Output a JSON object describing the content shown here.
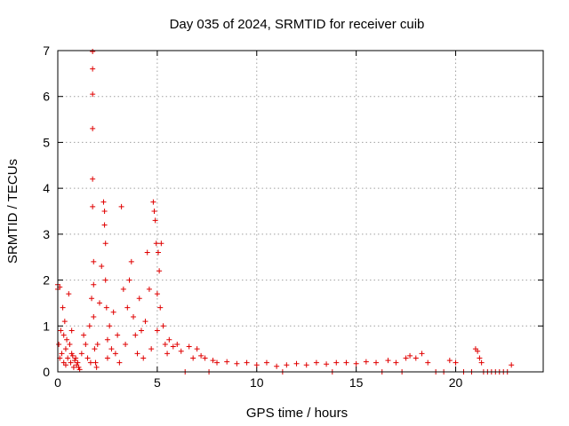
{
  "chart_data": {
    "type": "scatter",
    "title": "Day 035 of 2024, SRMTID for receiver cuib",
    "xlabel": "GPS time / hours",
    "ylabel": "SRMTID / TECUs",
    "xlim": [
      0,
      24.4
    ],
    "ylim": [
      0,
      7
    ],
    "xticks": [
      0,
      5,
      10,
      15,
      20
    ],
    "yticks": [
      0,
      1,
      2,
      3,
      4,
      5,
      6,
      7
    ],
    "xtick_labels": [
      "0",
      "5",
      "10",
      "15",
      "20"
    ],
    "ytick_labels": [
      "0",
      "1",
      "2",
      "3",
      "4",
      "5",
      "6",
      "7"
    ],
    "grid": true,
    "marker": "+",
    "color": "#e00000",
    "series": [
      {
        "name": "SRMTID",
        "x": [
          0.0,
          0.0,
          0.05,
          0.1,
          0.1,
          0.15,
          0.2,
          0.25,
          0.3,
          0.3,
          0.35,
          0.4,
          0.4,
          0.45,
          0.5,
          0.55,
          0.6,
          0.65,
          0.7,
          0.7,
          0.75,
          0.8,
          0.85,
          0.9,
          0.95,
          1.0,
          1.05,
          1.1,
          1.2,
          1.3,
          1.4,
          1.5,
          1.6,
          1.65,
          1.7,
          1.75,
          1.75,
          1.75,
          1.75,
          1.75,
          1.75,
          1.8,
          1.8,
          1.8,
          1.85,
          1.9,
          1.95,
          2.0,
          2.1,
          2.2,
          2.3,
          2.35,
          2.35,
          2.4,
          2.4,
          2.45,
          2.5,
          2.5,
          2.6,
          2.7,
          2.8,
          2.9,
          3.0,
          3.1,
          3.2,
          3.3,
          3.4,
          3.5,
          3.6,
          3.7,
          3.8,
          3.9,
          4.0,
          4.1,
          4.2,
          4.3,
          4.4,
          4.5,
          4.6,
          4.7,
          4.8,
          4.85,
          4.9,
          4.95,
          5.0,
          5.0,
          5.05,
          5.1,
          5.15,
          5.2,
          5.3,
          5.4,
          5.5,
          5.6,
          5.8,
          6.0,
          6.2,
          6.4,
          6.6,
          6.8,
          7.0,
          7.2,
          7.4,
          7.6,
          7.8,
          8.0,
          8.5,
          9.0,
          9.5,
          10.0,
          10.5,
          11.0,
          11.3,
          11.5,
          12.0,
          12.5,
          13.0,
          13.5,
          13.8,
          14.0,
          14.5,
          15.0,
          15.5,
          16.0,
          16.3,
          16.6,
          17.0,
          17.3,
          17.5,
          17.7,
          18.0,
          18.3,
          18.6,
          19.0,
          19.4,
          19.7,
          20.0,
          20.4,
          20.8,
          21.0,
          21.1,
          21.2,
          21.3,
          21.4,
          21.6,
          21.8,
          22.0,
          22.2,
          22.4,
          22.6,
          22.8
        ],
        "y": [
          1.8,
          1.9,
          0.6,
          1.85,
          0.3,
          0.9,
          0.4,
          1.4,
          0.8,
          0.2,
          1.1,
          0.5,
          0.15,
          0.7,
          0.3,
          1.7,
          0.6,
          0.2,
          0.9,
          0.4,
          0.35,
          0.1,
          0.25,
          0.3,
          0.15,
          0.2,
          0.1,
          0.05,
          0.4,
          0.8,
          0.6,
          0.3,
          1.0,
          0.2,
          1.6,
          6.98,
          6.6,
          6.05,
          5.3,
          4.2,
          3.6,
          2.4,
          1.9,
          1.2,
          0.5,
          0.2,
          0.1,
          0.6,
          1.5,
          2.3,
          3.7,
          3.5,
          3.2,
          2.8,
          2.0,
          1.4,
          0.7,
          0.3,
          1.0,
          0.5,
          1.3,
          0.4,
          0.8,
          0.2,
          3.6,
          1.8,
          0.6,
          1.4,
          2.0,
          2.4,
          1.2,
          0.8,
          0.4,
          1.6,
          0.9,
          0.3,
          1.1,
          2.6,
          1.8,
          0.5,
          3.7,
          3.5,
          3.3,
          2.8,
          1.7,
          0.9,
          2.6,
          2.2,
          1.4,
          2.8,
          1.0,
          0.6,
          0.4,
          0.7,
          0.55,
          0.6,
          0.45,
          0.0,
          0.55,
          0.3,
          0.5,
          0.35,
          0.3,
          0.0,
          0.25,
          0.2,
          0.22,
          0.18,
          0.2,
          0.15,
          0.2,
          0.12,
          0.0,
          0.15,
          0.18,
          0.15,
          0.2,
          0.17,
          0.0,
          0.2,
          0.2,
          0.18,
          0.22,
          0.2,
          0.0,
          0.25,
          0.2,
          0.0,
          0.3,
          0.35,
          0.3,
          0.4,
          0.2,
          0.0,
          0.0,
          0.25,
          0.2,
          0.0,
          0.0,
          0.5,
          0.45,
          0.3,
          0.2,
          0.0,
          0.0,
          0.0,
          0.0,
          0.0,
          0.0,
          0.0,
          0.15
        ]
      }
    ]
  }
}
